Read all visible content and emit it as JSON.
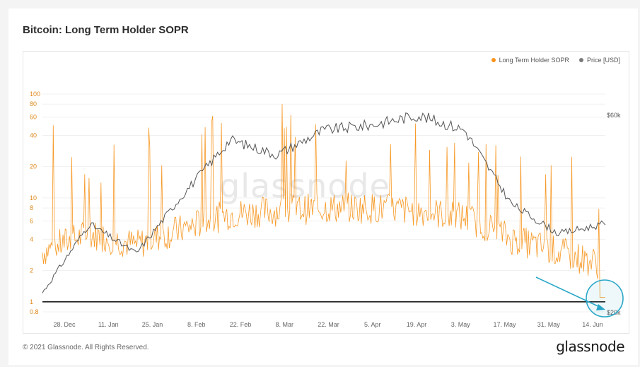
{
  "title": "Bitcoin: Long Term Holder SOPR",
  "footer_copyright": "© 2021 Glassnode. All Rights Reserved.",
  "brand": "glassnode",
  "watermark": "glassnode",
  "legend": [
    {
      "label": "Long Term Holder SOPR",
      "color": "#f7931a"
    },
    {
      "label": "Price [USD]",
      "color": "#7a7a7a"
    }
  ],
  "chart_data": {
    "type": "line",
    "title": "Bitcoin: Long Term Holder SOPR",
    "xlabel": "",
    "ylabel": "",
    "x_ticks": [
      "28. Dec",
      "11. Jan",
      "25. Jan",
      "8. Feb",
      "22. Feb",
      "8. Mar",
      "22. Mar",
      "5. Apr",
      "19. Apr",
      "3. May",
      "17. May",
      "31. May",
      "14. Jun"
    ],
    "y_ticks_left": [
      "0.8",
      "1",
      "2",
      "4",
      "6",
      "8",
      "10",
      "20",
      "40",
      "60",
      "80",
      "100"
    ],
    "y_scale_left": "log",
    "y_ticks_right": [
      "$20k",
      "$60k"
    ],
    "reference_line": 1,
    "grid": true,
    "legend_position": "top-right",
    "series": [
      {
        "name": "Long Term Holder SOPR",
        "color": "#f7931a",
        "axis": "left",
        "x": [
          "28. Dec",
          "11. Jan",
          "25. Jan",
          "8. Feb",
          "22. Feb",
          "8. Mar",
          "22. Mar",
          "5. Apr",
          "19. Apr",
          "3. May",
          "17. May",
          "31. May",
          "14. Jun"
        ],
        "values": [
          3,
          4.5,
          3.5,
          5,
          7,
          7.5,
          8,
          8,
          7.5,
          6.5,
          4,
          3,
          2.2
        ],
        "spikes": [
          60,
          25,
          50,
          45,
          100,
          100,
          50,
          50,
          60,
          40,
          30,
          35,
          6
        ]
      },
      {
        "name": "Price [USD]",
        "color": "#555555",
        "axis": "right",
        "x": [
          "28. Dec",
          "11. Jan",
          "25. Jan",
          "8. Feb",
          "22. Feb",
          "8. Mar",
          "22. Mar",
          "5. Apr",
          "19. Apr",
          "3. May",
          "17. May",
          "31. May",
          "14. Jun"
        ],
        "values": [
          24000,
          38000,
          32000,
          44000,
          55000,
          52000,
          57000,
          58000,
          60000,
          57000,
          42000,
          36000,
          38000
        ]
      }
    ]
  }
}
